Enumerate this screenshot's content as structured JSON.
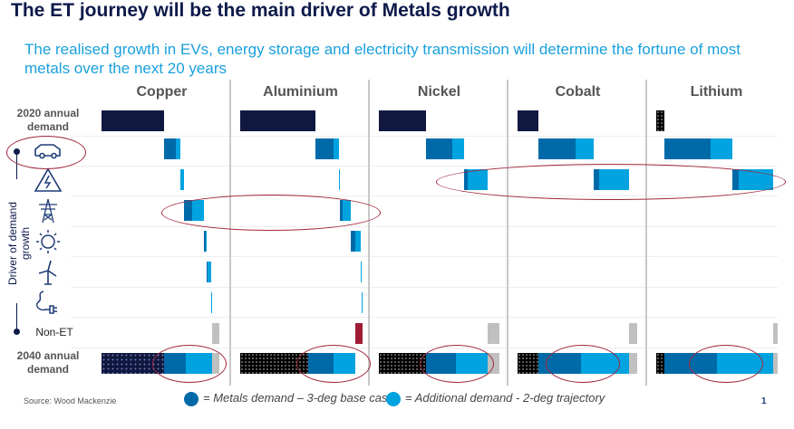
{
  "title": "The ET journey will be the main driver of Metals growth",
  "subtitle": "The realised growth in EVs, energy storage and electricity transmission will determine the fortune of most metals over the next 20 years",
  "source": "Source: Wood Mackenzie",
  "page_number": "1",
  "axis_label": "Driver of demand growth",
  "row_labels": {
    "start": "2020 annual demand",
    "non_et": "Non-ET",
    "end": "2040 annual demand"
  },
  "driver_icons": [
    "car-icon",
    "high-voltage-icon",
    "transmission-tower-icon",
    "sun-icon",
    "wind-turbine-icon",
    "plug-icon"
  ],
  "legend": [
    {
      "label": "= Metals demand – 3-deg base case",
      "color": "#006aa8"
    },
    {
      "label": "= Additional demand - 2-deg trajectory",
      "color": "#00a3e0"
    }
  ],
  "colors": {
    "base": "#006aa8",
    "additional": "#00a3e0",
    "demand_2020": "#101840",
    "non_et_positive": "#c0c0c0",
    "non_et_negative": "#a01c36",
    "annotation": "#a0283c"
  },
  "chart_data": {
    "type": "waterfall-bar",
    "note_units": "index, 2020 annual demand = 100",
    "drivers": [
      "EVs",
      "Energy storage",
      "Electricity transmission",
      "Solar",
      "Wind",
      "EV charging"
    ],
    "metals": [
      {
        "name": "Copper",
        "demand_2020": 100,
        "base": [
          19,
          0,
          13,
          1.5,
          1.5,
          0
        ],
        "additional": [
          7,
          6,
          20,
          1.5,
          6,
          1.5
        ],
        "non_et": 12
      },
      {
        "name": "Aluminium",
        "demand_2020": 100,
        "base": [
          24,
          0,
          4,
          6,
          0,
          0
        ],
        "additional": [
          7,
          1,
          10,
          8,
          1,
          1
        ],
        "non_et": -10
      },
      {
        "name": "Nickel",
        "demand_2020": 100,
        "base": [
          56,
          8,
          0,
          0,
          0,
          0
        ],
        "additional": [
          25,
          42,
          0,
          0,
          0,
          0
        ],
        "non_et": 25
      },
      {
        "name": "Cobalt",
        "demand_2020": 100,
        "base": [
          178,
          26,
          0,
          0,
          0,
          0
        ],
        "additional": [
          87,
          143,
          0,
          0,
          0,
          0
        ],
        "non_et": 39
      },
      {
        "name": "Lithium",
        "demand_2020": 100,
        "base": [
          567,
          78,
          0,
          0,
          0,
          0
        ],
        "additional": [
          267,
          422,
          0,
          0,
          0,
          0
        ],
        "non_et": 56
      }
    ]
  }
}
